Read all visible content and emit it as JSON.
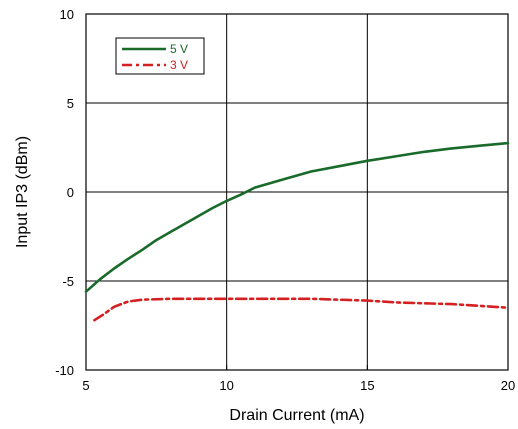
{
  "chart_data": {
    "type": "line",
    "title": "",
    "xlabel": "Drain Current (mA)",
    "ylabel": "Input IP3 (dBm)",
    "xlim": [
      5,
      20
    ],
    "ylim": [
      -10,
      10
    ],
    "x_ticks": [
      5,
      10,
      15,
      20
    ],
    "y_ticks": [
      -10,
      -5,
      0,
      5,
      10
    ],
    "x_tick_labels": [
      "5",
      "10",
      "15",
      "20"
    ],
    "y_tick_labels": [
      "-10",
      "-5",
      "0",
      "5",
      "10"
    ],
    "grid": true,
    "legend_position": "top-left",
    "series": [
      {
        "name": "5 V",
        "color": "#1a6b2a",
        "line_style": "solid",
        "x": [
          5.0,
          5.5,
          6.0,
          6.5,
          7.0,
          7.5,
          8.0,
          8.5,
          9.0,
          9.5,
          10.0,
          10.5,
          11.0,
          12.0,
          13.0,
          14.0,
          15.0,
          16.0,
          17.0,
          18.0,
          19.0,
          20.0
        ],
        "y": [
          -5.6,
          -4.9,
          -4.3,
          -3.75,
          -3.25,
          -2.7,
          -2.25,
          -1.8,
          -1.35,
          -0.9,
          -0.5,
          -0.15,
          0.25,
          0.7,
          1.15,
          1.45,
          1.75,
          2.0,
          2.25,
          2.45,
          2.6,
          2.75
        ]
      },
      {
        "name": "3 V",
        "color": "#d42020",
        "line_style": "dash-dot",
        "x": [
          5.3,
          5.6,
          6.0,
          6.5,
          7.0,
          8.0,
          9.0,
          10.0,
          11.0,
          12.0,
          13.0,
          14.0,
          15.0,
          16.0,
          17.0,
          18.0,
          19.0,
          20.0
        ],
        "y": [
          -7.2,
          -6.9,
          -6.45,
          -6.15,
          -6.05,
          -6.0,
          -6.0,
          -6.0,
          -6.0,
          -6.0,
          -6.0,
          -6.05,
          -6.1,
          -6.2,
          -6.25,
          -6.3,
          -6.4,
          -6.5
        ]
      }
    ]
  }
}
